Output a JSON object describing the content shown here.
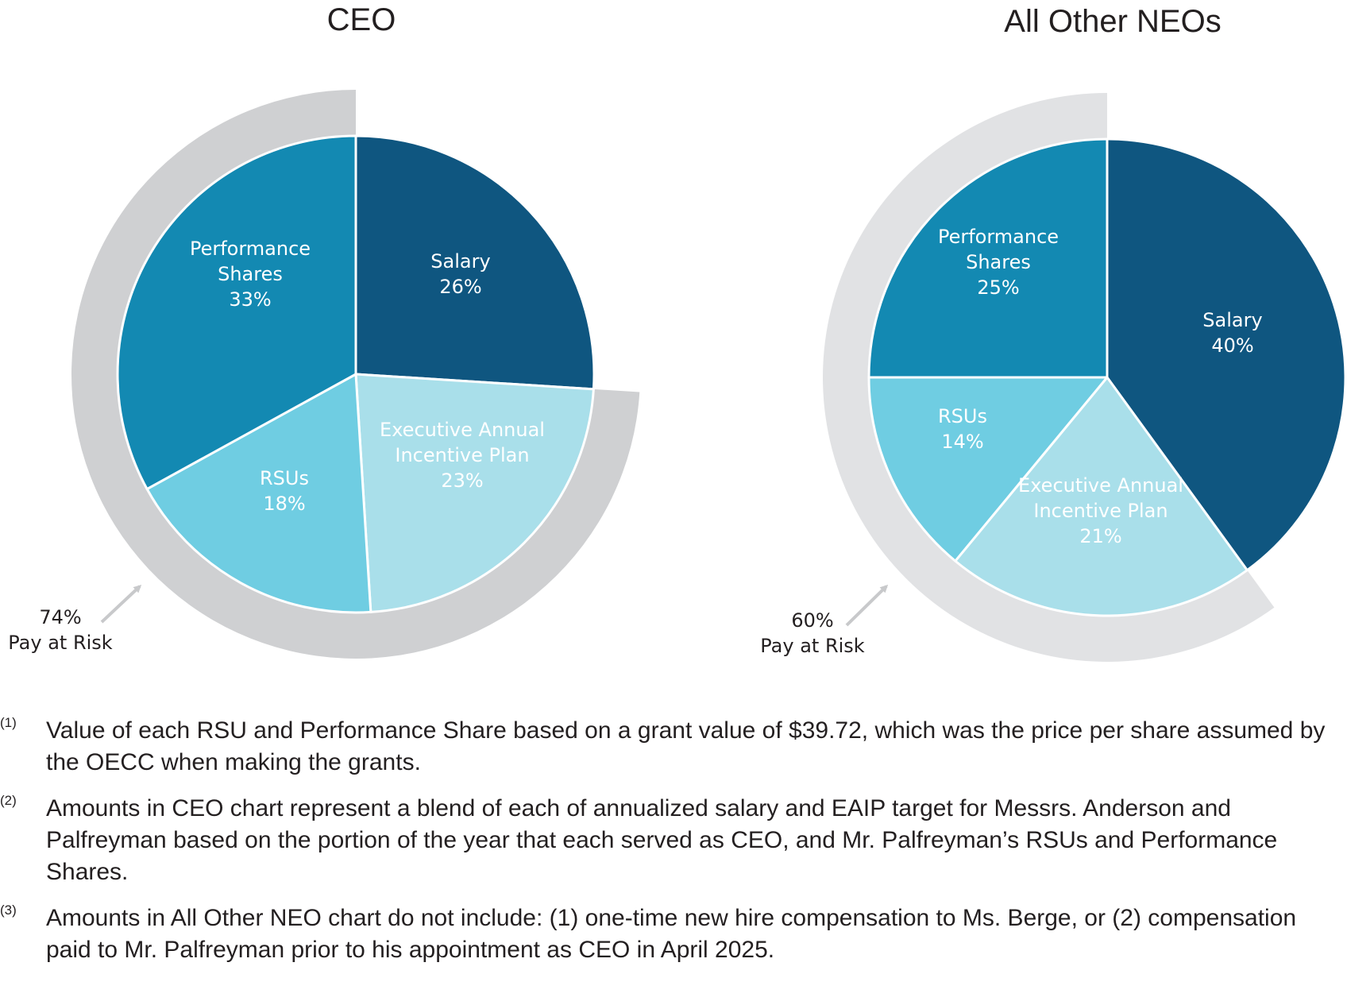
{
  "chart_data": [
    {
      "type": "pie",
      "title": "CEO",
      "slices": [
        {
          "label": [
            "Salary",
            "26%"
          ],
          "name": "Salary",
          "value": 26,
          "color": "#0f5680"
        },
        {
          "label": [
            "Executive Annual",
            "Incentive Plan",
            "23%"
          ],
          "name": "Executive Annual Incentive Plan",
          "value": 23,
          "color": "#a9dfea"
        },
        {
          "label": [
            "RSUs",
            "18%"
          ],
          "name": "RSUs",
          "value": 18,
          "color": "#6fcde2"
        },
        {
          "label": [
            "Performance",
            "Shares",
            "33%"
          ],
          "name": "Performance Shares",
          "value": 33,
          "color": "#1389b2"
        }
      ],
      "pay_at_risk": {
        "value": 74,
        "label": [
          "74%",
          "Pay at Risk"
        ],
        "ring_color": "#cfd0d2"
      }
    },
    {
      "type": "pie",
      "title": "All Other NEOs",
      "slices": [
        {
          "label": [
            "Salary",
            "40%"
          ],
          "name": "Salary",
          "value": 40,
          "color": "#0f5680"
        },
        {
          "label": [
            "Executive Annual",
            "Incentive Plan",
            "21%"
          ],
          "name": "Executive Annual Incentive Plan",
          "value": 21,
          "color": "#a9dfea"
        },
        {
          "label": [
            "RSUs",
            "14%"
          ],
          "name": "RSUs",
          "value": 14,
          "color": "#6fcde2"
        },
        {
          "label": [
            "Performance",
            "Shares",
            "25%"
          ],
          "name": "Performance Shares",
          "value": 25,
          "color": "#1389b2"
        }
      ],
      "pay_at_risk": {
        "value": 60,
        "label": [
          "60%",
          "Pay at Risk"
        ],
        "ring_color": "#e1e2e4"
      }
    }
  ],
  "footnotes": [
    {
      "marker": "(1)",
      "text": "Value of each RSU and Performance Share based on a grant value of $39.72, which was the price per share assumed by the OECC when making the grants."
    },
    {
      "marker": "(2)",
      "text": "Amounts in CEO chart represent a blend of each of annualized salary and EAIP target for Messrs. Anderson and Palfreyman based on the portion of the year that each served as CEO, and Mr. Palfreyman’s RSUs and Performance Shares."
    },
    {
      "marker": "(3)",
      "text": "Amounts in All Other NEO chart do not include: (1) one-time new hire compensation to Ms. Berge, or (2) compensation paid to Mr. Palfreyman prior to his appointment as CEO in April 2025."
    }
  ],
  "colors": {
    "text": "#231f20",
    "arrow": "#c8c9cb"
  }
}
